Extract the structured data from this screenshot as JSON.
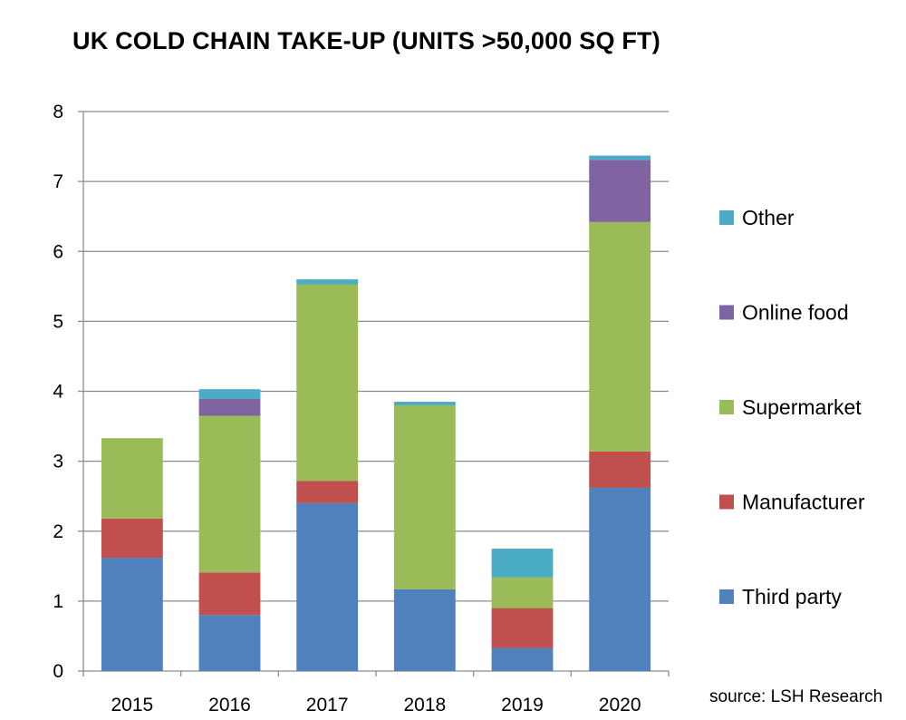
{
  "chart_data": {
    "type": "bar",
    "stacked": true,
    "title": "UK COLD CHAIN TAKE-UP (UNITS >50,000 SQ FT)",
    "xlabel": "",
    "ylabel": "",
    "ylim": [
      0,
      8
    ],
    "yticks": [
      0,
      1,
      2,
      3,
      4,
      5,
      6,
      7,
      8
    ],
    "grid": true,
    "legend_position": "right",
    "categories": [
      "2015",
      "2016",
      "2017",
      "2018",
      "2019",
      "2020"
    ],
    "series": [
      {
        "name": "Third party",
        "color": "#4F81BD",
        "values": [
          1.62,
          0.8,
          2.4,
          1.17,
          0.33,
          2.62
        ]
      },
      {
        "name": "Manufacturer",
        "color": "#C0504D",
        "values": [
          0.56,
          0.61,
          0.32,
          0.0,
          0.57,
          0.52
        ]
      },
      {
        "name": "Supermarket",
        "color": "#9BBB59",
        "values": [
          1.15,
          2.24,
          2.81,
          2.63,
          0.44,
          3.28
        ]
      },
      {
        "name": "Online food",
        "color": "#8064A2",
        "values": [
          0.0,
          0.24,
          0.0,
          0.0,
          0.0,
          0.89
        ]
      },
      {
        "name": "Other",
        "color": "#4BACC6",
        "values": [
          0.0,
          0.14,
          0.07,
          0.05,
          0.41,
          0.06
        ]
      }
    ],
    "source": "source: LSH Research"
  }
}
